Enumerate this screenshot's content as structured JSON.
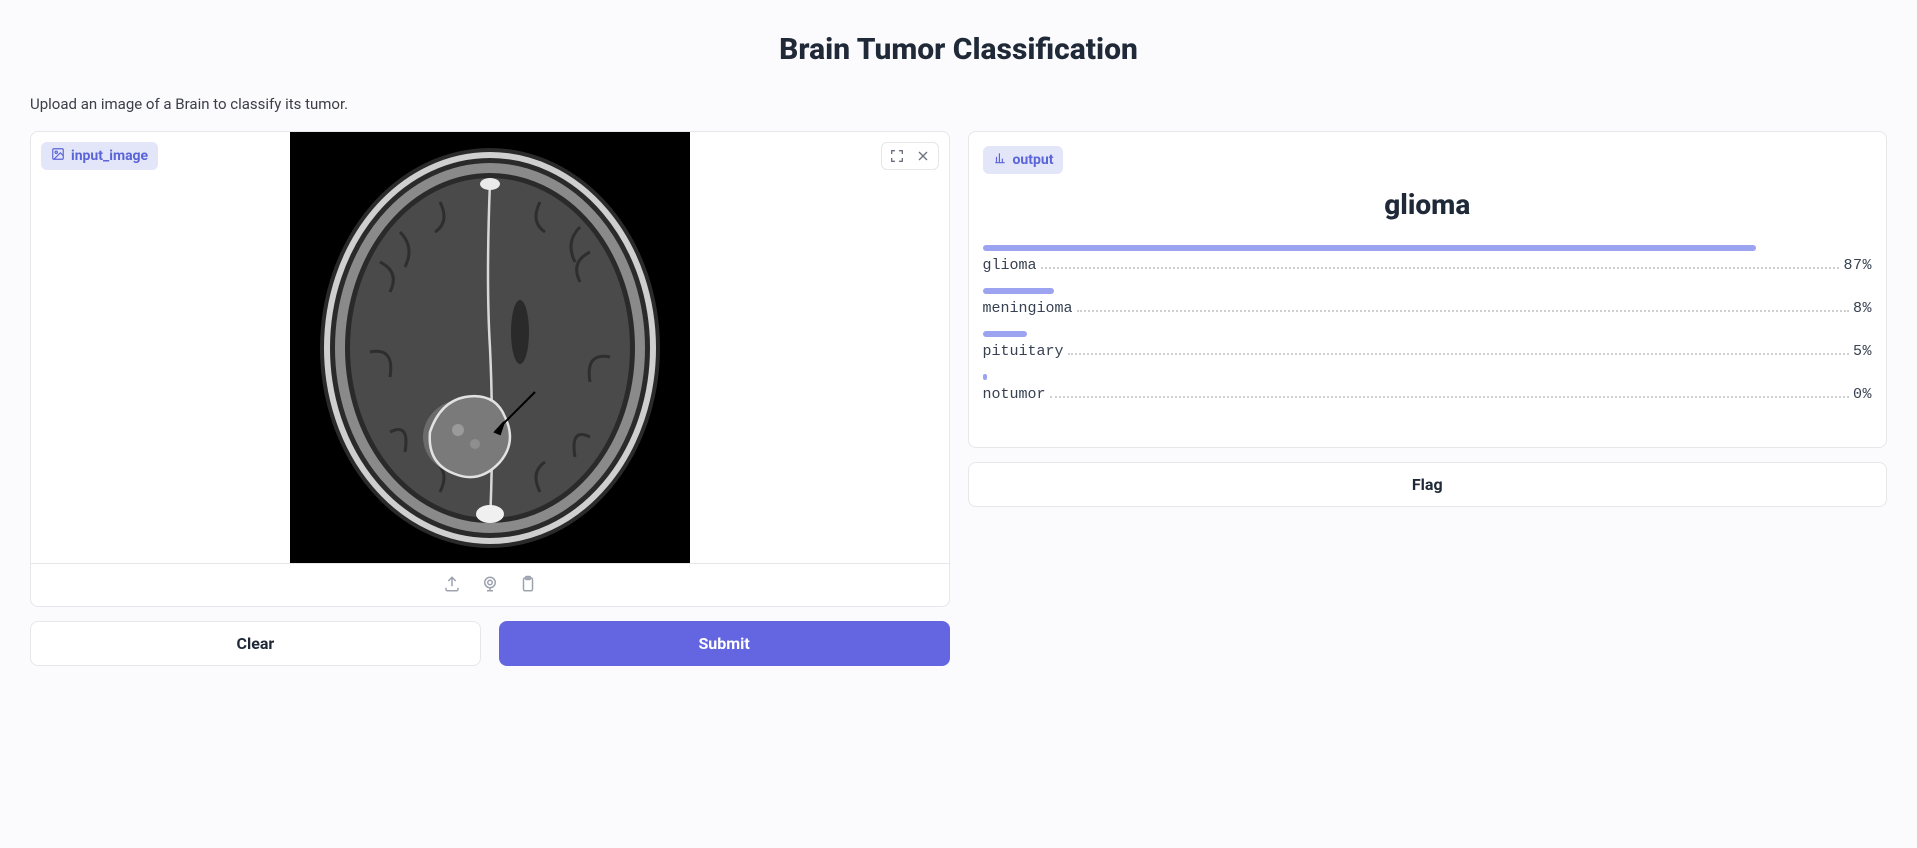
{
  "header": {
    "title": "Brain Tumor Classification",
    "subtitle": "Upload an image of a Brain to classify its tumor."
  },
  "input": {
    "panel_label": "input_image",
    "icons": {
      "panel_icon": "image-icon",
      "expand": "expand-icon",
      "close": "close-icon",
      "upload": "upload-icon",
      "webcam": "webcam-icon",
      "clipboard": "clipboard-icon"
    }
  },
  "output": {
    "panel_label": "output",
    "top_class": "glioma",
    "results": [
      {
        "label": "glioma",
        "pct": 87,
        "pct_text": "87%"
      },
      {
        "label": "meningioma",
        "pct": 8,
        "pct_text": "8%"
      },
      {
        "label": "pituitary",
        "pct": 5,
        "pct_text": "5%"
      },
      {
        "label": "notumor",
        "pct": 0,
        "pct_text": "0%"
      }
    ],
    "bar_color": "#9ca3f0"
  },
  "buttons": {
    "clear": "Clear",
    "submit": "Submit",
    "flag": "Flag"
  },
  "colors": {
    "accent": "#6366e0",
    "label_bg": "#e2e6f8",
    "label_text": "#5b64d8",
    "panel_border": "#e5e7eb",
    "page_bg": "#fbfafd"
  }
}
